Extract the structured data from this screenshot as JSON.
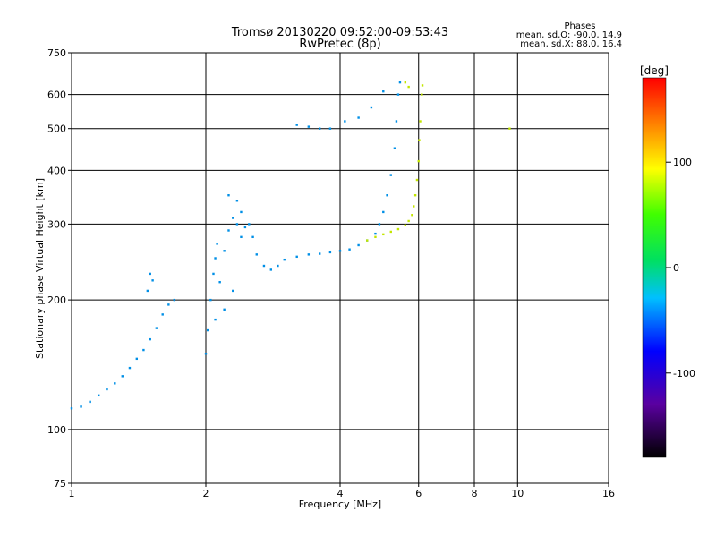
{
  "chart_data": {
    "type": "scatter",
    "title": "Tromsø 20130220 09:52:00-09:53:43",
    "subtitle": "RwPretec (8p)",
    "xlabel": "Frequency [MHz]",
    "ylabel": "Stationary phase Virtual Height [km]",
    "x_scale": "log",
    "y_scale": "log",
    "xlim": [
      1,
      16
    ],
    "ylim": [
      75,
      750
    ],
    "x_ticks": [
      1,
      2,
      4,
      6,
      8,
      10,
      16
    ],
    "y_ticks": [
      75,
      100,
      200,
      300,
      400,
      500,
      600,
      750
    ],
    "grid": true,
    "legend": {
      "title": "Phases",
      "lines": [
        "mean, sd,O: -90.0, 14.9",
        "mean, sd,X: 88.0, 16.4"
      ]
    },
    "colorbar": {
      "label": "[deg]",
      "ticks": [
        100,
        0,
        -100
      ],
      "range": [
        -180,
        180
      ],
      "placement": "right"
    },
    "series": [
      {
        "name": "O",
        "phase_deg": -90,
        "points": [
          [
            1.0,
            112
          ],
          [
            1.05,
            113
          ],
          [
            1.1,
            116
          ],
          [
            1.15,
            120
          ],
          [
            1.2,
            124
          ],
          [
            1.25,
            128
          ],
          [
            1.3,
            133
          ],
          [
            1.35,
            139
          ],
          [
            1.4,
            146
          ],
          [
            1.45,
            153
          ],
          [
            1.5,
            162
          ],
          [
            1.55,
            172
          ],
          [
            1.6,
            185
          ],
          [
            1.65,
            195
          ],
          [
            1.7,
            200
          ],
          [
            1.48,
            210
          ],
          [
            1.52,
            222
          ],
          [
            1.5,
            230
          ],
          [
            2.0,
            150
          ],
          [
            2.02,
            170
          ],
          [
            2.05,
            200
          ],
          [
            2.08,
            230
          ],
          [
            2.1,
            250
          ],
          [
            2.12,
            270
          ],
          [
            2.15,
            220
          ],
          [
            2.2,
            260
          ],
          [
            2.25,
            290
          ],
          [
            2.3,
            310
          ],
          [
            2.35,
            300
          ],
          [
            2.4,
            280
          ],
          [
            2.45,
            295
          ],
          [
            2.5,
            300
          ],
          [
            2.55,
            280
          ],
          [
            2.6,
            255
          ],
          [
            2.7,
            240
          ],
          [
            2.8,
            235
          ],
          [
            2.9,
            240
          ],
          [
            3.0,
            248
          ],
          [
            3.2,
            252
          ],
          [
            3.4,
            255
          ],
          [
            3.6,
            256
          ],
          [
            3.8,
            258
          ],
          [
            4.0,
            260
          ],
          [
            4.2,
            262
          ],
          [
            4.4,
            268
          ],
          [
            4.6,
            275
          ],
          [
            4.8,
            285
          ],
          [
            4.9,
            300
          ],
          [
            5.0,
            320
          ],
          [
            5.1,
            350
          ],
          [
            5.2,
            390
          ],
          [
            5.3,
            450
          ],
          [
            5.35,
            520
          ],
          [
            5.4,
            600
          ],
          [
            5.45,
            640
          ],
          [
            2.25,
            350
          ],
          [
            2.35,
            340
          ],
          [
            2.4,
            320
          ],
          [
            2.1,
            180
          ],
          [
            2.2,
            190
          ],
          [
            2.3,
            210
          ],
          [
            3.2,
            510
          ],
          [
            3.4,
            505
          ],
          [
            3.6,
            500
          ],
          [
            3.8,
            500
          ],
          [
            4.1,
            520
          ],
          [
            4.4,
            530
          ],
          [
            4.7,
            560
          ],
          [
            5.0,
            610
          ]
        ]
      },
      {
        "name": "X",
        "phase_deg": 88,
        "points": [
          [
            4.6,
            275
          ],
          [
            4.8,
            280
          ],
          [
            5.0,
            284
          ],
          [
            5.2,
            288
          ],
          [
            5.4,
            292
          ],
          [
            5.6,
            298
          ],
          [
            5.7,
            305
          ],
          [
            5.8,
            315
          ],
          [
            5.85,
            330
          ],
          [
            5.9,
            350
          ],
          [
            5.95,
            380
          ],
          [
            6.0,
            420
          ],
          [
            6.02,
            470
          ],
          [
            6.05,
            520
          ],
          [
            6.1,
            600
          ],
          [
            6.12,
            630
          ],
          [
            5.6,
            640
          ],
          [
            5.7,
            625
          ],
          [
            9.6,
            500
          ]
        ]
      }
    ]
  }
}
